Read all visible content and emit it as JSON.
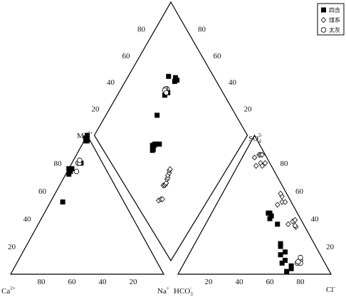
{
  "chart_data": {
    "type": "scatter",
    "subtype": "piper-diagram",
    "legend": {
      "placement": "top-right",
      "entries": [
        {
          "name": "四含",
          "marker": "filled-square"
        },
        {
          "name": "煤系",
          "marker": "open-diamond"
        },
        {
          "name": "太灰",
          "marker": "open-circle"
        }
      ]
    },
    "ion_labels": {
      "mg": "Mg",
      "mg_sup": "2+",
      "ca": "Ca",
      "ca_sup": "2+",
      "na": "Na",
      "na_sup": "+",
      "hco3": "HCO",
      "hco3_sub": "3",
      "hco3_sup": "-",
      "so4": "SO",
      "so4_sub": "4",
      "so4_sup": "2-",
      "cl": "Cl",
      "cl_sup": "-"
    },
    "ticks": {
      "cation_left": [
        "20",
        "40",
        "60",
        "80"
      ],
      "cation_bottom": [
        "80",
        "60",
        "40",
        "20"
      ],
      "anion_bottom": [
        "20",
        "40",
        "60",
        "80"
      ],
      "anion_right": [
        "80",
        "60",
        "40",
        "20"
      ],
      "diamond_left": [
        "80",
        "60",
        "40",
        "20"
      ],
      "diamond_right": [
        "80",
        "60",
        "40",
        "20"
      ]
    },
    "series": [
      {
        "name": "四含",
        "cation": [
          [
            40,
            52
          ],
          [
            24,
            74
          ],
          [
            26,
            72
          ],
          [
            22,
            76
          ],
          [
            24,
            76
          ],
          [
            14,
            80
          ],
          [
            3,
            96
          ],
          [
            2,
            98
          ],
          [
            1,
            98
          ],
          [
            0,
            100
          ],
          [
            2,
            96
          ]
        ],
        "anion": [
          [
            70,
            2
          ],
          [
            72,
            4
          ],
          [
            71,
            6
          ],
          [
            64,
            8
          ],
          [
            65,
            10
          ],
          [
            60,
            14
          ],
          [
            62,
            16
          ],
          [
            57,
            20
          ],
          [
            56,
            22
          ],
          [
            47,
            36
          ],
          [
            40,
            40
          ],
          [
            40,
            42
          ],
          [
            38,
            44
          ],
          [
            37,
            44
          ]
        ],
        "diamond": [
          [
            72,
            75
          ],
          [
            76,
            70
          ],
          [
            74,
            69
          ],
          [
            76,
            68
          ],
          [
            62,
            70
          ],
          [
            65,
            69
          ],
          [
            49,
            67
          ],
          [
            39,
            54
          ],
          [
            33,
            56
          ],
          [
            32,
            56
          ],
          [
            35,
            57
          ],
          [
            34,
            58
          ],
          [
            36,
            57
          ],
          [
            37,
            56
          ]
        ]
      },
      {
        "name": "煤系",
        "anion": [
          [
            60,
            34
          ],
          [
            59,
            35
          ],
          [
            54,
            36
          ],
          [
            56,
            38
          ],
          [
            57,
            39
          ],
          [
            40,
            50
          ],
          [
            42,
            52
          ],
          [
            40,
            56
          ],
          [
            38,
            58
          ],
          [
            44,
            52
          ],
          [
            12,
            78
          ],
          [
            14,
            80
          ],
          [
            16,
            78
          ],
          [
            17,
            80
          ],
          [
            8,
            84
          ],
          [
            10,
            86
          ],
          [
            11,
            86
          ],
          [
            12,
            86
          ]
        ],
        "diamond": [
          [
            16,
            32
          ],
          [
            18,
            31
          ],
          [
            19,
            30
          ],
          [
            25,
            35
          ],
          [
            26,
            34
          ],
          [
            27,
            34
          ],
          [
            28,
            34
          ],
          [
            30,
            35
          ],
          [
            31,
            35
          ],
          [
            32,
            36
          ],
          [
            34,
            36
          ],
          [
            35,
            37
          ],
          [
            36,
            37
          ]
        ]
      },
      {
        "name": "太灰",
        "cation": [
          [
            20,
            74
          ],
          [
            16,
            80
          ],
          [
            15,
            80
          ],
          [
            14,
            82
          ]
        ],
        "anion": [
          [
            75,
            10
          ],
          [
            74,
            8
          ],
          [
            76,
            8
          ],
          [
            74,
            9
          ],
          [
            74,
            12
          ]
        ],
        "diamond": [
          [
            66,
            71
          ],
          [
            65,
            72
          ],
          [
            64,
            72
          ],
          [
            64,
            70
          ]
        ]
      }
    ]
  }
}
